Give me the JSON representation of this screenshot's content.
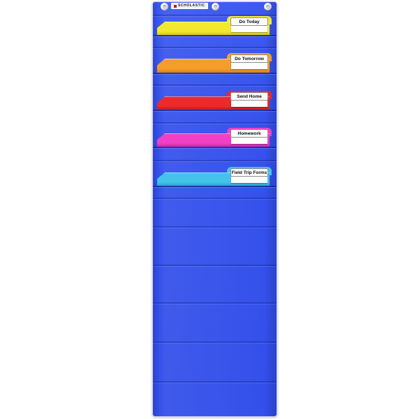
{
  "brand_label": {
    "text": "SCHOLASTIC"
  },
  "pocket_chart": {
    "fabric_color": "#3552ec",
    "seam_color": "#2742c8",
    "grommet_icon": "metal-eyelet",
    "grommet_count": 3
  },
  "folders": [
    {
      "label": "Do Today",
      "color": "#f2e92e",
      "edge_color": "#d6cc12"
    },
    {
      "label": "Do Tomorrow",
      "color": "#f59d2b",
      "edge_color": "#d98410"
    },
    {
      "label": "Send Home",
      "color": "#ea2a2e",
      "edge_color": "#c31a1e"
    },
    {
      "label": "Homework",
      "color": "#f041c6",
      "edge_color": "#cf28a4"
    },
    {
      "label": "Field Trip Forms",
      "color": "#44c2ea",
      "edge_color": "#27a6d2"
    }
  ]
}
